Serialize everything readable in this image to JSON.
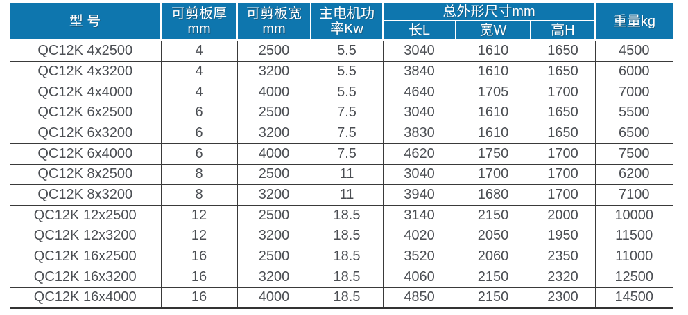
{
  "accent_color": "#0e76ae",
  "body_text_color": "#4b4e53",
  "table": {
    "header": {
      "model": "型 号",
      "thickness_line1": "可剪板厚",
      "thickness_line2": "mm",
      "plate_width_line1": "可剪板宽",
      "plate_width_line2": "mm",
      "power_line1": "主电机功",
      "power_line2": "率Kw",
      "dimensions_group": "总外形尺寸mm",
      "dim_length": "长L",
      "dim_width": "宽W",
      "dim_height": "高H",
      "weight": "重量kg"
    },
    "rows": [
      [
        "QC12K 4x2500",
        "4",
        "2500",
        "5.5",
        "3040",
        "1610",
        "1650",
        "4500"
      ],
      [
        "QC12K 4x3200",
        "4",
        "3200",
        "5.5",
        "3840",
        "1610",
        "1650",
        "6000"
      ],
      [
        "QC12K 4x4000",
        "4",
        "4000",
        "5.5",
        "4640",
        "1705",
        "1700",
        "7000"
      ],
      [
        "QC12K 6x2500",
        "6",
        "2500",
        "7.5",
        "3040",
        "1610",
        "1650",
        "5500"
      ],
      [
        "QC12K 6x3200",
        "6",
        "3200",
        "7.5",
        "3830",
        "1610",
        "1650",
        "6500"
      ],
      [
        "QC12K 6x4000",
        "6",
        "4000",
        "7.5",
        "4620",
        "1750",
        "1700",
        "7500"
      ],
      [
        "QC12K 8x2500",
        "8",
        "2500",
        "11",
        "3040",
        "1700",
        "1700",
        "6200"
      ],
      [
        "QC12K 8x3200",
        "8",
        "3200",
        "11",
        "3940",
        "1680",
        "1700",
        "7100"
      ],
      [
        "QC12K 12x2500",
        "12",
        "2500",
        "18.5",
        "3140",
        "2150",
        "2000",
        "10000"
      ],
      [
        "QC12K 12x3200",
        "12",
        "3200",
        "18.5",
        "4020",
        "2050",
        "1950",
        "11500"
      ],
      [
        "QC12K 16x2500",
        "16",
        "2500",
        "18.5",
        "3520",
        "2060",
        "2350",
        "11000"
      ],
      [
        "QC12K 16x3200",
        "16",
        "3200",
        "18.5",
        "4060",
        "2150",
        "2320",
        "12500"
      ],
      [
        "QC12K 16x4000",
        "16",
        "4000",
        "18.5",
        "4850",
        "2150",
        "2300",
        "14500"
      ]
    ]
  }
}
